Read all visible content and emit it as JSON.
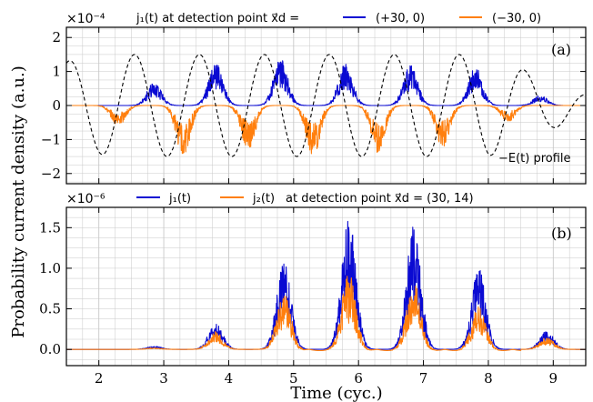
{
  "colors": {
    "blue": "#0a0ad2",
    "orange": "#ff7f0e",
    "field": "#000000",
    "grid": "#c8c8c8"
  },
  "figure": {
    "ylabel": "Probability current density (a.u.)",
    "xlabel": "Time (cyc.)"
  },
  "chart_data": [
    {
      "type": "line",
      "panel_label": "(a)",
      "multiplier": "×10⁻⁴",
      "legend_title": "j₁(t) at detection point x⃗d =",
      "legend_position": "top",
      "grid": true,
      "xlim": [
        1.5,
        9.5
      ],
      "ylim": [
        -2.3,
        2.3
      ],
      "xticks": [
        2,
        3,
        4,
        5,
        6,
        7,
        8,
        9
      ],
      "yticks": [
        -2,
        -1,
        0,
        1,
        2
      ],
      "ytick_labels": [
        "−2",
        "−1",
        "0",
        "1",
        "2"
      ],
      "annotation": "−E(t) profile",
      "series": [
        {
          "name": "(+30, 0)",
          "color": "#0a0ad2",
          "bursts": [
            {
              "t": 2.85,
              "amp": 0.7
            },
            {
              "t": 3.8,
              "amp": 1.3
            },
            {
              "t": 4.8,
              "amp": 1.4
            },
            {
              "t": 5.8,
              "amp": 1.25
            },
            {
              "t": 6.8,
              "amp": 1.2
            },
            {
              "t": 7.8,
              "amp": 1.15
            },
            {
              "t": 8.8,
              "amp": 0.3
            }
          ]
        },
        {
          "name": "(−30, 0)",
          "color": "#ff7f0e",
          "bursts": [
            {
              "t": 2.3,
              "amp": -0.6
            },
            {
              "t": 3.3,
              "amp": -1.5
            },
            {
              "t": 4.3,
              "amp": -1.3
            },
            {
              "t": 5.3,
              "amp": -1.5
            },
            {
              "t": 6.3,
              "amp": -1.4
            },
            {
              "t": 7.3,
              "amp": -1.25
            },
            {
              "t": 8.3,
              "amp": -0.5
            }
          ]
        },
        {
          "name": "−E(t) profile",
          "style": "dashed",
          "color": "#000000",
          "amplitude": 1.5,
          "envelope": "plateau"
        }
      ]
    },
    {
      "type": "line",
      "panel_label": "(b)",
      "multiplier": "×10⁻⁶",
      "legend_title": "at detection point x⃗d = (30, 14)",
      "legend_position": "top",
      "grid": true,
      "xlim": [
        1.5,
        9.5
      ],
      "ylim": [
        -0.2,
        1.75
      ],
      "xticks": [
        2,
        3,
        4,
        5,
        6,
        7,
        8,
        9
      ],
      "yticks": [
        0.0,
        0.5,
        1.0,
        1.5
      ],
      "ytick_labels": [
        "0.0",
        "0.5",
        "1.0",
        "1.5"
      ],
      "series": [
        {
          "name": "j₁(t)",
          "color": "#0a0ad2",
          "bursts": [
            {
              "t": 2.85,
              "amp": 0.04
            },
            {
              "t": 3.8,
              "amp": 0.33
            },
            {
              "t": 4.85,
              "amp": 1.1
            },
            {
              "t": 5.85,
              "amp": 1.65
            },
            {
              "t": 6.85,
              "amp": 1.53
            },
            {
              "t": 7.85,
              "amp": 1.0
            },
            {
              "t": 8.9,
              "amp": 0.23
            }
          ]
        },
        {
          "name": "j₂(t)",
          "color": "#ff7f0e",
          "bursts": [
            {
              "t": 2.85,
              "amp": 0.02
            },
            {
              "t": 3.8,
              "amp": 0.22
            },
            {
              "t": 4.85,
              "amp": 0.7
            },
            {
              "t": 5.85,
              "amp": 0.95
            },
            {
              "t": 6.85,
              "amp": 0.85
            },
            {
              "t": 7.85,
              "amp": 0.55
            },
            {
              "t": 8.9,
              "amp": 0.15
            }
          ]
        }
      ]
    }
  ]
}
